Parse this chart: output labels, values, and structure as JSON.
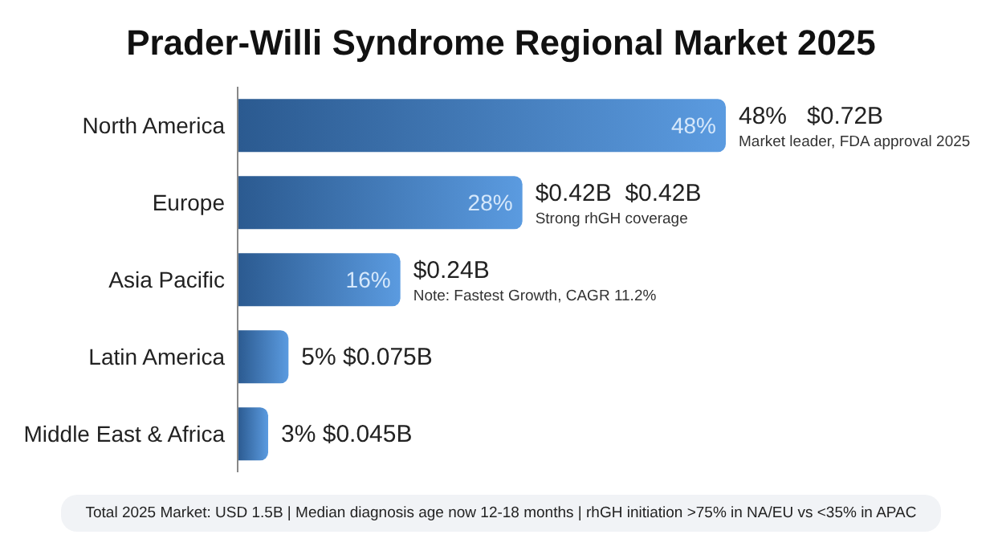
{
  "chart_data": {
    "type": "bar",
    "orientation": "horizontal",
    "title": "Prader-Willi Syndrome Regional Market 2025",
    "categories": [
      "North America",
      "Europe",
      "Asia Pacific",
      "Latin America",
      "Middle East & Africa"
    ],
    "values": [
      48,
      28,
      16,
      5,
      3
    ],
    "color": "#5b9be0",
    "value_labels": [
      "48%",
      "28%",
      "16%",
      "5%",
      "3%"
    ],
    "annotations": [
      {
        "text": "48%   $0.72B",
        "x": 48,
        "y": "North America"
      },
      {
        "text": "Market leader, FDA approval 2025",
        "x": 48,
        "y": "North America"
      },
      {
        "text": "$0.42B  $0.42B",
        "x": 28,
        "y": "Europe"
      },
      {
        "text": "Strong rhGH coverage",
        "x": 28,
        "y": "Europe"
      },
      {
        "text": "$0.24B",
        "x": 16,
        "y": "Asia Pacific"
      },
      {
        "text": "Note: Fastest Growth, CAGR 11.2%",
        "x": 16,
        "y": "Asia Pacific"
      },
      {
        "text": "$0.075B",
        "x": 5,
        "y": "Latin America"
      },
      {
        "text": "$0.045B",
        "x": 3,
        "y": "Middle East & Africa"
      },
      "Total 2025 Market: USD 1.5B | Median diagnosis age now 12-18 months | rhGH initiation >75% in NA/EU vs <35% in APAC"
    ]
  }
}
